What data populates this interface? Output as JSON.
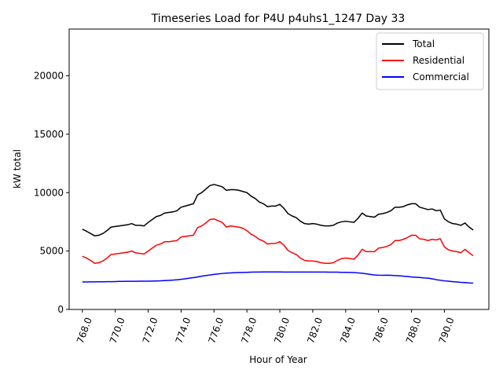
{
  "chart_data": {
    "type": "line",
    "title": "Timeseries Load for P4U p4uhs1_1247  Day 33",
    "xlabel": "Hour of Year",
    "ylabel": "kW total",
    "xlim": [
      767.2,
      792.7
    ],
    "ylim": [
      0,
      24000
    ],
    "xticks": [
      768.0,
      770.0,
      772.0,
      774.0,
      776.0,
      778.0,
      780.0,
      782.0,
      784.0,
      786.0,
      788.0,
      790.0
    ],
    "xtick_labels": [
      "768.0",
      "770.0",
      "772.0",
      "774.0",
      "776.0",
      "778.0",
      "780.0",
      "782.0",
      "784.0",
      "786.0",
      "788.0",
      "790.0"
    ],
    "yticks": [
      0,
      5000,
      10000,
      15000,
      20000
    ],
    "ytick_labels": [
      "0",
      "5000",
      "10000",
      "15000",
      "20000"
    ],
    "grid": false,
    "legend_position": "top-right",
    "x": [
      768.0,
      768.25,
      768.5,
      768.75,
      769.0,
      769.25,
      769.5,
      769.75,
      770.0,
      770.25,
      770.5,
      770.75,
      771.0,
      771.25,
      771.5,
      771.75,
      772.0,
      772.25,
      772.5,
      772.75,
      773.0,
      773.25,
      773.5,
      773.75,
      774.0,
      774.25,
      774.5,
      774.75,
      775.0,
      775.25,
      775.5,
      775.75,
      776.0,
      776.25,
      776.5,
      776.75,
      777.0,
      777.25,
      777.5,
      777.75,
      778.0,
      778.25,
      778.5,
      778.75,
      779.0,
      779.25,
      779.5,
      779.75,
      780.0,
      780.25,
      780.5,
      780.75,
      781.0,
      781.25,
      781.5,
      781.75,
      782.0,
      782.25,
      782.5,
      782.75,
      783.0,
      783.25,
      783.5,
      783.75,
      784.0,
      784.25,
      784.5,
      784.75,
      785.0,
      785.25,
      785.5,
      785.75,
      786.0,
      786.25,
      786.5,
      786.75,
      787.0,
      787.25,
      787.5,
      787.75,
      788.0,
      788.25,
      788.5,
      788.75,
      789.0,
      789.25,
      789.5,
      789.75,
      790.0,
      790.25,
      790.5,
      790.75,
      791.0,
      791.25,
      791.5,
      791.75
    ],
    "series": [
      {
        "name": "Total",
        "color": "#000000",
        "values": [
          6870,
          6700,
          6500,
          6300,
          6350,
          6500,
          6750,
          7050,
          7100,
          7150,
          7200,
          7250,
          7350,
          7200,
          7200,
          7150,
          7450,
          7700,
          7950,
          8050,
          8250,
          8300,
          8350,
          8450,
          8750,
          8850,
          8950,
          9050,
          9800,
          10000,
          10300,
          10600,
          10700,
          10600,
          10500,
          10200,
          10250,
          10250,
          10200,
          10100,
          10000,
          9700,
          9500,
          9200,
          9050,
          8800,
          8850,
          8850,
          9000,
          8650,
          8200,
          8000,
          7850,
          7550,
          7350,
          7300,
          7350,
          7300,
          7200,
          7150,
          7150,
          7200,
          7400,
          7500,
          7550,
          7500,
          7450,
          7800,
          8250,
          8000,
          7950,
          7900,
          8150,
          8200,
          8300,
          8450,
          8750,
          8750,
          8800,
          8950,
          9050,
          9050,
          8750,
          8650,
          8550,
          8600,
          8450,
          8500,
          7750,
          7500,
          7350,
          7300,
          7200,
          7400,
          7050,
          6800
        ]
      },
      {
        "name": "Residential",
        "color": "#ff0000",
        "values": [
          4550,
          4400,
          4200,
          3950,
          4000,
          4150,
          4400,
          4700,
          4750,
          4800,
          4850,
          4900,
          5000,
          4850,
          4800,
          4750,
          5000,
          5250,
          5500,
          5600,
          5800,
          5800,
          5850,
          5900,
          6200,
          6250,
          6300,
          6350,
          7000,
          7150,
          7400,
          7700,
          7750,
          7600,
          7450,
          7050,
          7150,
          7100,
          7050,
          6950,
          6750,
          6450,
          6250,
          6000,
          5850,
          5600,
          5650,
          5650,
          5800,
          5500,
          5050,
          4850,
          4700,
          4400,
          4200,
          4150,
          4150,
          4100,
          4000,
          3950,
          3950,
          4000,
          4200,
          4350,
          4400,
          4350,
          4300,
          4650,
          5150,
          4950,
          4950,
          4950,
          5250,
          5300,
          5400,
          5550,
          5900,
          5900,
          6000,
          6150,
          6350,
          6350,
          6050,
          6000,
          5900,
          6000,
          5950,
          6050,
          5350,
          5100,
          5000,
          4950,
          4850,
          5150,
          4850,
          4600
        ]
      },
      {
        "name": "Commercial",
        "color": "#0000ff",
        "values": [
          2350,
          2350,
          2360,
          2360,
          2370,
          2370,
          2380,
          2380,
          2390,
          2400,
          2400,
          2410,
          2410,
          2410,
          2420,
          2420,
          2420,
          2430,
          2440,
          2450,
          2470,
          2490,
          2510,
          2540,
          2580,
          2620,
          2680,
          2720,
          2780,
          2850,
          2900,
          2950,
          3000,
          3040,
          3080,
          3110,
          3130,
          3150,
          3160,
          3170,
          3180,
          3190,
          3200,
          3200,
          3210,
          3210,
          3210,
          3210,
          3210,
          3200,
          3200,
          3200,
          3200,
          3200,
          3200,
          3200,
          3200,
          3200,
          3200,
          3200,
          3190,
          3190,
          3190,
          3180,
          3180,
          3170,
          3160,
          3130,
          3100,
          3050,
          3000,
          2950,
          2930,
          2920,
          2930,
          2920,
          2900,
          2880,
          2850,
          2820,
          2780,
          2760,
          2740,
          2700,
          2680,
          2620,
          2550,
          2500,
          2450,
          2420,
          2380,
          2350,
          2320,
          2300,
          2270,
          2250
        ]
      }
    ]
  }
}
